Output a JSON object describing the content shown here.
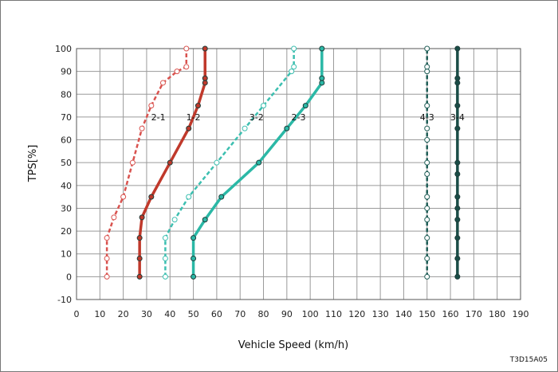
{
  "chart_data": {
    "type": "line",
    "xlabel": "Vehicle Speed (km/h)",
    "ylabel": "TPS[%]",
    "xlim": [
      0,
      190
    ],
    "ylim": [
      -10,
      100
    ],
    "xticks": [
      0,
      10,
      20,
      30,
      40,
      50,
      60,
      70,
      80,
      90,
      100,
      110,
      120,
      130,
      140,
      150,
      160,
      170,
      180,
      190
    ],
    "yticks": [
      -10,
      0,
      10,
      20,
      30,
      40,
      50,
      60,
      70,
      80,
      90,
      100
    ],
    "grid": true,
    "code": "T3D15A05",
    "series": [
      {
        "name": "2-1",
        "color": "#d9534f",
        "style": "dashed",
        "marker": "open",
        "x": [
          13,
          13,
          13,
          16,
          20,
          24,
          28,
          32,
          37,
          43,
          47,
          47
        ],
        "y": [
          0,
          8,
          17,
          26,
          35,
          50,
          65,
          75,
          85,
          90,
          92,
          100
        ]
      },
      {
        "name": "1-2",
        "color": "#c0392b",
        "style": "solid",
        "marker": "filled",
        "x": [
          27,
          27,
          27,
          28,
          32,
          40,
          48,
          52,
          55,
          55,
          55
        ],
        "y": [
          0,
          8,
          17,
          26,
          35,
          50,
          65,
          75,
          85,
          87,
          100
        ]
      },
      {
        "name": "3-2",
        "color": "#3cbfb0",
        "style": "dashed",
        "marker": "open",
        "x": [
          38,
          38,
          38,
          42,
          48,
          60,
          72,
          80,
          92,
          93,
          93
        ],
        "y": [
          0,
          8,
          17,
          25,
          35,
          50,
          65,
          75,
          90,
          92,
          100
        ]
      },
      {
        "name": "2-3",
        "color": "#2bb8a6",
        "style": "solid",
        "marker": "filled",
        "x": [
          50,
          50,
          50,
          55,
          62,
          78,
          90,
          98,
          105,
          105,
          105
        ],
        "y": [
          0,
          8,
          17,
          25,
          35,
          50,
          65,
          75,
          85,
          87,
          100
        ]
      },
      {
        "name": "4-3",
        "color": "#1f5e57",
        "style": "dashed",
        "marker": "open",
        "x": [
          150,
          150,
          150,
          150,
          150,
          150,
          150,
          150,
          150,
          150,
          150,
          150,
          150,
          150
        ],
        "y": [
          0,
          8,
          17,
          25,
          30,
          35,
          45,
          50,
          60,
          65,
          75,
          90,
          92,
          100
        ]
      },
      {
        "name": "3-4",
        "color": "#1a4d47",
        "style": "solid",
        "marker": "filled",
        "x": [
          163,
          163,
          163,
          163,
          163,
          163,
          163,
          163,
          163,
          163,
          163,
          163,
          163
        ],
        "y": [
          0,
          8,
          17,
          25,
          30,
          35,
          45,
          50,
          65,
          75,
          85,
          87,
          100
        ]
      }
    ],
    "labels": [
      {
        "series": "2-1",
        "x": 35,
        "y": 70
      },
      {
        "series": "1-2",
        "x": 50,
        "y": 70
      },
      {
        "series": "3-2",
        "x": 77,
        "y": 70
      },
      {
        "series": "2-3",
        "x": 95,
        "y": 70
      },
      {
        "series": "4-3",
        "x": 150,
        "y": 70
      },
      {
        "series": "3-4",
        "x": 163,
        "y": 70
      }
    ]
  }
}
